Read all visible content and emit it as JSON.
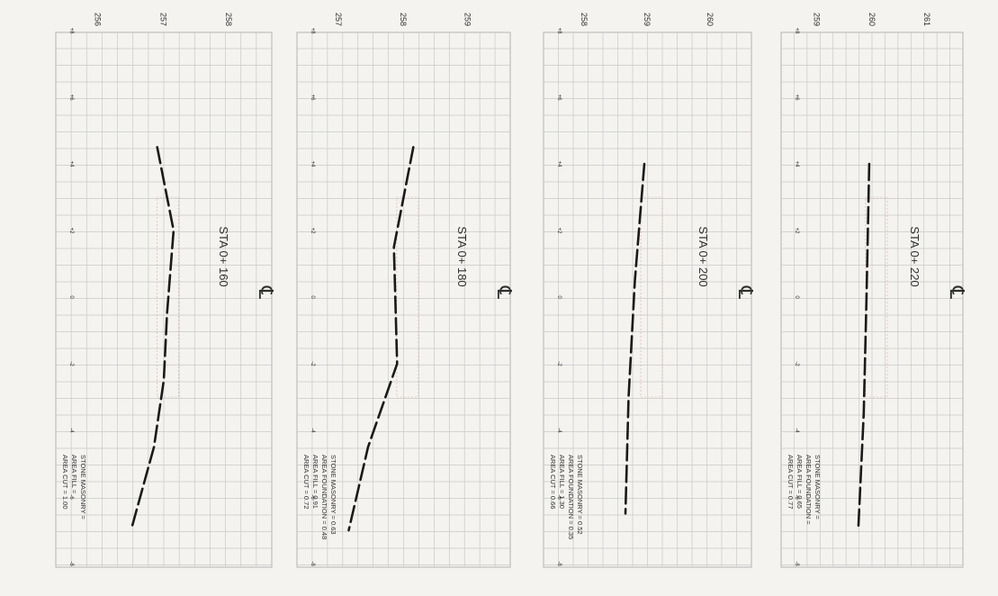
{
  "sections": [
    {
      "station": "STA 0+ 160",
      "centerline_symbol": "℄",
      "elevation_ticks": [
        "256",
        "257",
        "258"
      ],
      "offset_ticks": [
        "-8",
        "-6",
        "-4",
        "-2",
        "0",
        "+2",
        "+4",
        "+6",
        "+8"
      ],
      "areas": [
        "AREA CUT = 1.00",
        "AREA FILL =",
        "STONE MASONRY ="
      ],
      "ground_profile": [
        {
          "offset": 4.5,
          "elevation": 256.95
        },
        {
          "offset": 2.0,
          "elevation": 257.2
        },
        {
          "offset": -0.5,
          "elevation": 257.1
        },
        {
          "offset": -2.5,
          "elevation": 257.05
        },
        {
          "offset": -4.5,
          "elevation": 256.9
        },
        {
          "offset": -7.0,
          "elevation": 256.55
        }
      ]
    },
    {
      "station": "STA 0+ 180",
      "centerline_symbol": "℄",
      "elevation_ticks": [
        "257",
        "258",
        "259"
      ],
      "offset_ticks": [
        "-8",
        "-6",
        "-4",
        "-2",
        "0",
        "+2",
        "+4",
        "+6",
        "+8"
      ],
      "areas": [
        "AREA CUT = 0.72",
        "AREA FILL = 0.91",
        "AREA FOUNDATION = 0.48",
        "STONE MASONRY = 0.63"
      ],
      "ground_profile": [
        {
          "offset": 4.5,
          "elevation": 258.2
        },
        {
          "offset": 1.5,
          "elevation": 257.9
        },
        {
          "offset": -2.0,
          "elevation": 257.95
        },
        {
          "offset": -4.5,
          "elevation": 257.5
        },
        {
          "offset": -7.0,
          "elevation": 257.2
        }
      ]
    },
    {
      "station": "STA 0+ 200",
      "centerline_symbol": "℄",
      "elevation_ticks": [
        "258",
        "259",
        "260"
      ],
      "offset_ticks": [
        "-8",
        "-6",
        "-4",
        "-2",
        "0",
        "+2",
        "+4",
        "+6",
        "+8"
      ],
      "areas": [
        "AREA CUT = 0.66",
        "AREA FILL = 1.30",
        "AREA FOUNDATION = 0.35",
        "STONE MASONRY = 0.52"
      ],
      "ground_profile": [
        {
          "offset": 4.0,
          "elevation": 259.0
        },
        {
          "offset": 0.5,
          "elevation": 258.85
        },
        {
          "offset": -3.0,
          "elevation": 258.75
        },
        {
          "offset": -6.5,
          "elevation": 258.7
        }
      ]
    },
    {
      "station": "STA 0+ 220",
      "centerline_symbol": "℄",
      "elevation_ticks": [
        "259",
        "260",
        "261"
      ],
      "offset_ticks": [
        "-8",
        "-6",
        "-4",
        "-2",
        "0",
        "+2",
        "+4",
        "+6",
        "+8"
      ],
      "areas": [
        "AREA CUT = 0.77",
        "AREA FILL = 0.65",
        "AREA FOUNDATION =",
        "STONE MASONRY ="
      ],
      "ground_profile": [
        {
          "offset": 4.0,
          "elevation": 260.0
        },
        {
          "offset": 0.0,
          "elevation": 259.95
        },
        {
          "offset": -3.5,
          "elevation": 259.9
        },
        {
          "offset": -7.0,
          "elevation": 259.8
        }
      ]
    }
  ],
  "colors": {
    "grid": "#c9c9c9",
    "grid_major": "#b3b3b3",
    "profile": "#1a1a1a",
    "paper": "#f4f3ef",
    "faint_structure": "#d9a9a9"
  }
}
